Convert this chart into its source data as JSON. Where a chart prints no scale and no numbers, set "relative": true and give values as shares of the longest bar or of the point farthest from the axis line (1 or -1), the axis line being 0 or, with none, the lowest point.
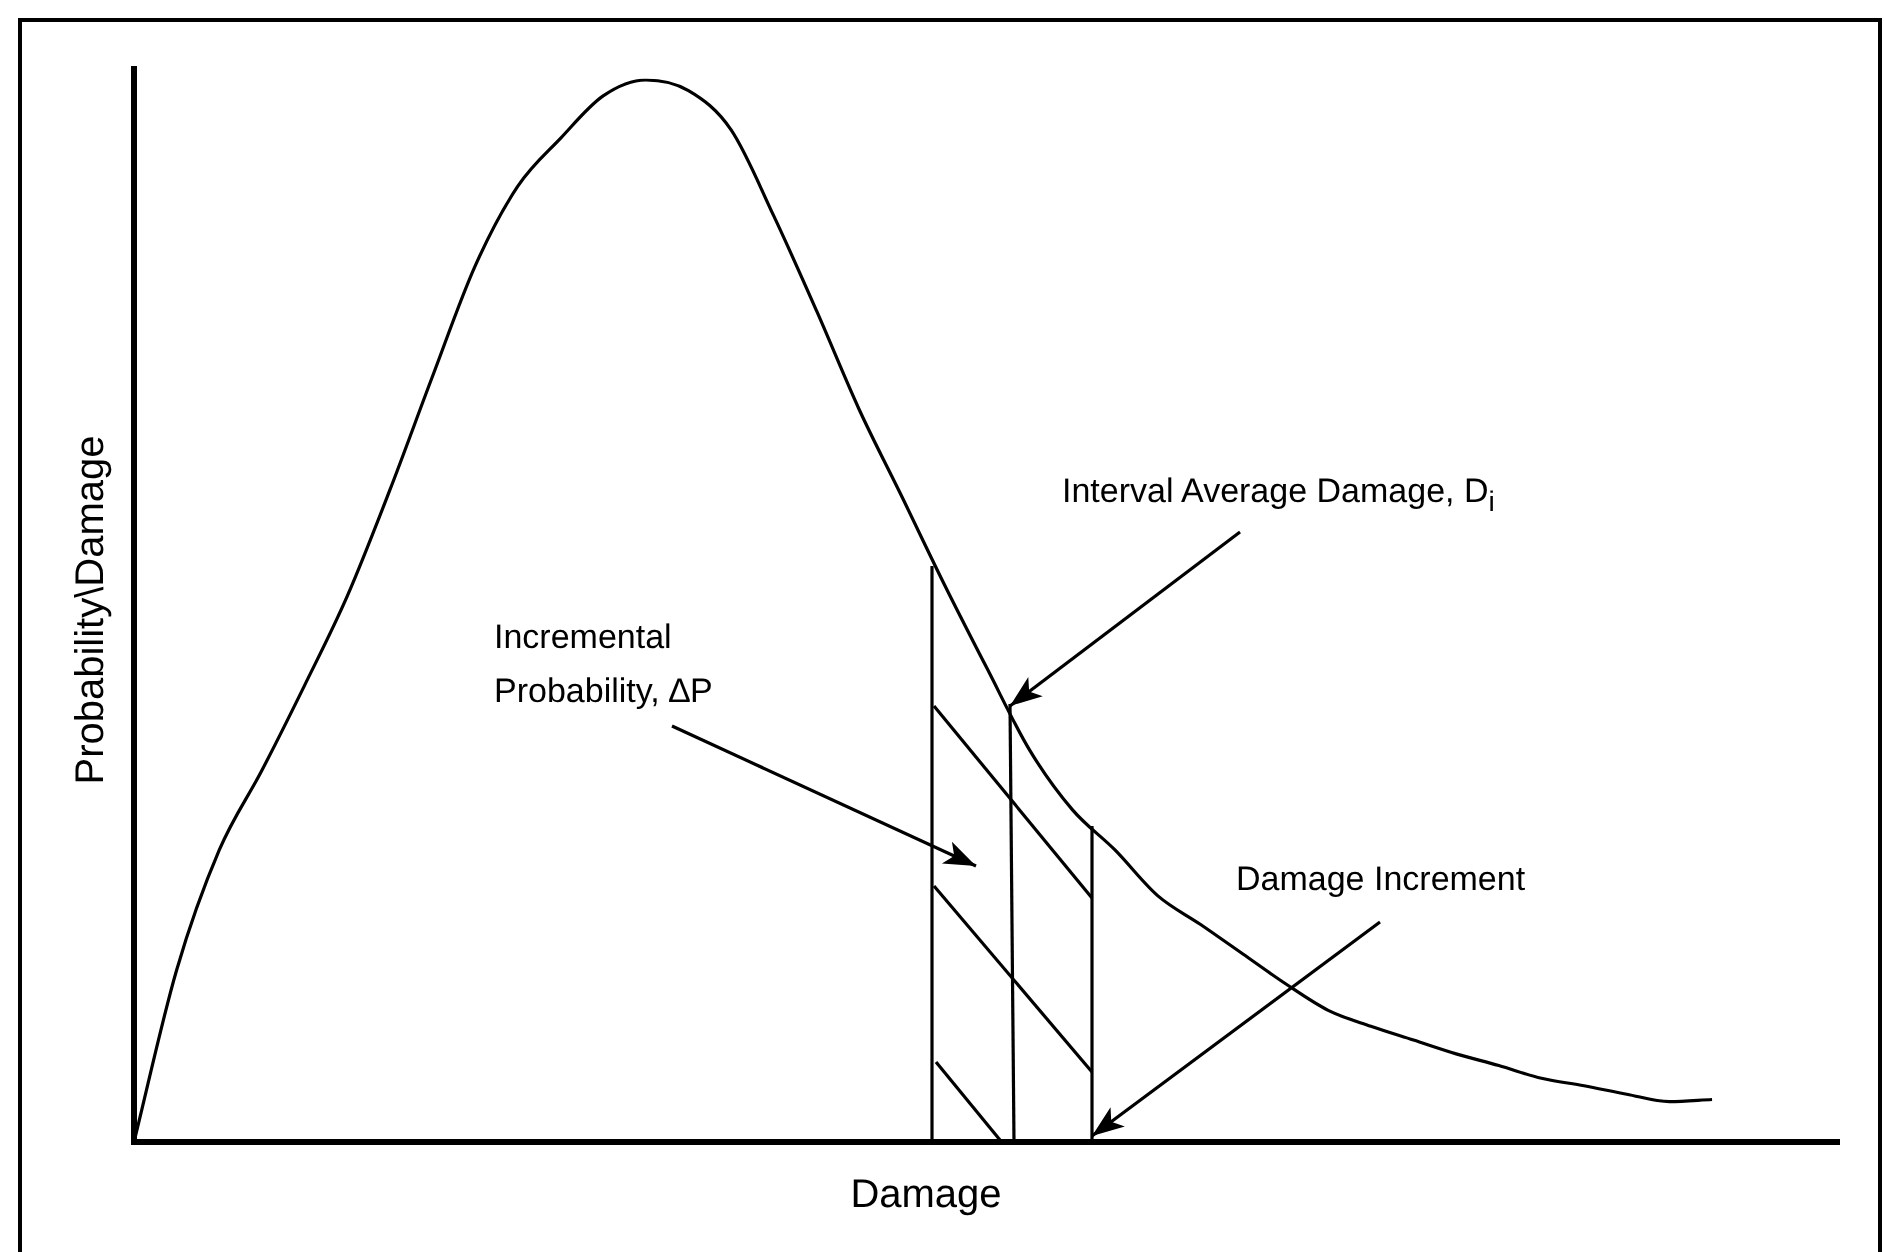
{
  "chart_data": {
    "type": "line",
    "relative": true,
    "xlabel": "Damage",
    "ylabel": "Probability\\Damage",
    "categories": [
      null,
      null,
      null,
      null,
      null,
      null,
      null,
      null,
      null,
      null,
      null,
      null,
      null,
      null,
      null,
      null,
      null,
      null,
      null,
      null,
      null,
      null,
      null,
      null,
      null,
      null,
      null,
      null,
      null,
      null,
      null,
      null,
      null,
      null,
      null,
      null,
      null,
      null,
      null,
      null,
      null
    ],
    "series": [
      {
        "color": "#000000",
        "values": [
          0,
          0.162,
          0.275,
          0.35,
          0.43,
          0.514,
          0.614,
          0.721,
          0.825,
          0.9,
          0.945,
          0.985,
          1,
          0.99,
          0.953,
          0.872,
          0.783,
          0.69,
          0.608,
          0.525,
          0.446,
          0.369,
          0.313,
          0.275,
          0.232,
          0.205,
          0.177,
          0.149,
          0.124,
          0.109,
          0.096,
          0.083,
          0.072,
          0.06,
          0.053,
          0.045,
          0.038,
          0.04,
          null,
          null,
          null
        ]
      }
    ],
    "annotations": [
      "Interval Average Damage, D$_{i}$",
      "Incremental Probability, ∆P",
      "Damage Increment"
    ],
    "legend": false,
    "marker": "none",
    "line_style": "solid"
  }
}
